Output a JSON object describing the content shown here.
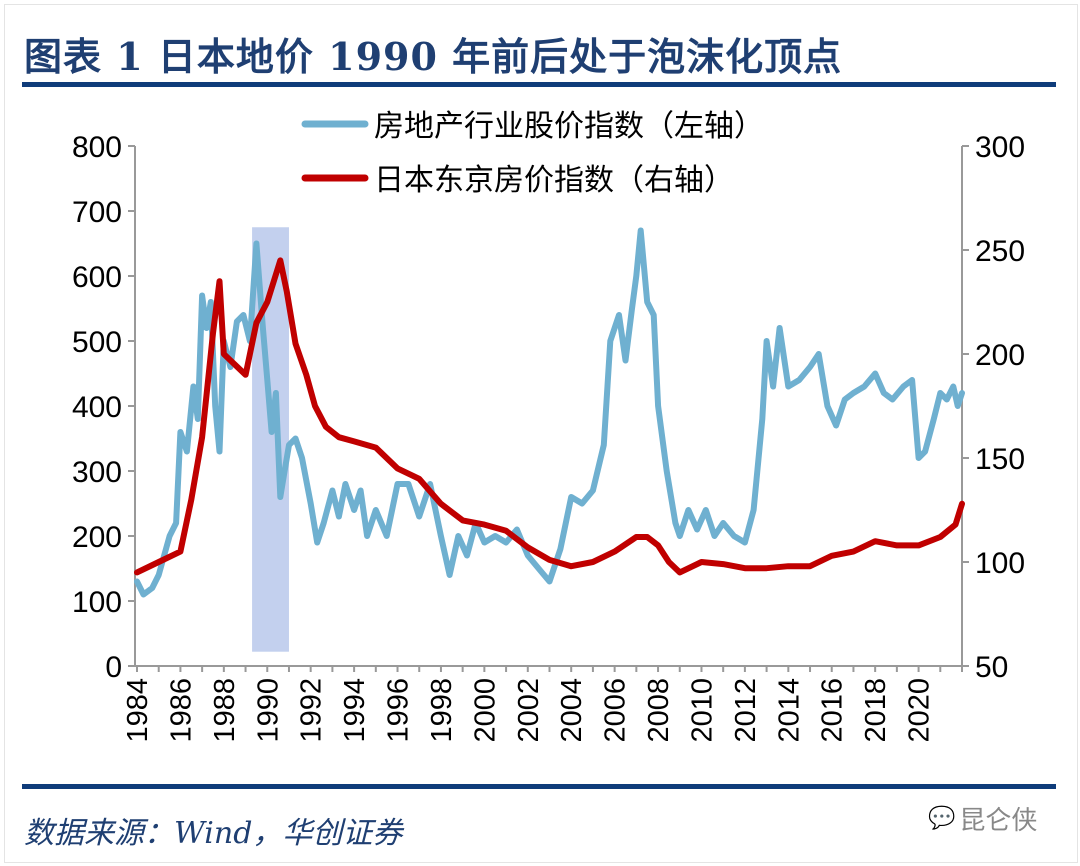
{
  "title": "图表 1 日本地价 1990 年前后处于泡沫化顶点",
  "source": "数据来源：Wind，华创证券",
  "watermark": "昆仑侠",
  "chart_data": {
    "type": "line",
    "title": "图表 1 日本地价 1990 年前后处于泡沫化顶点",
    "legend_position": "top-center",
    "x_ticks": [
      "1984",
      "1986",
      "1988",
      "1990",
      "1992",
      "1994",
      "1996",
      "1998",
      "2000",
      "2002",
      "2004",
      "2006",
      "2008",
      "2010",
      "2012",
      "2014",
      "2016",
      "2018",
      "2020"
    ],
    "xlim": [
      1984,
      2022
    ],
    "y_left": {
      "ylim": [
        0,
        800
      ],
      "ticks": [
        "0",
        "100",
        "200",
        "300",
        "400",
        "500",
        "600",
        "700",
        "800"
      ]
    },
    "y_right": {
      "ylim": [
        50,
        300
      ],
      "ticks": [
        "50",
        "100",
        "150",
        "200",
        "250",
        "300"
      ]
    },
    "highlight": {
      "x_range": [
        1989.3,
        1991.0
      ],
      "y_range_left": [
        22,
        675
      ],
      "color": "#b4c4ea"
    },
    "series": [
      {
        "name": "房地产行业股价指数（左轴）",
        "axis": "left",
        "color": "#6fb0d0",
        "x": [
          1984,
          1984.3,
          1984.7,
          1985,
          1985.5,
          1985.8,
          1986,
          1986.3,
          1986.6,
          1986.8,
          1987,
          1987.2,
          1987.4,
          1987.6,
          1987.8,
          1988,
          1988.3,
          1988.6,
          1988.9,
          1989.2,
          1989.5,
          1989.8,
          1990,
          1990.2,
          1990.4,
          1990.6,
          1990.8,
          1991,
          1991.3,
          1991.6,
          1992,
          1992.3,
          1992.6,
          1993,
          1993.3,
          1993.6,
          1994,
          1994.3,
          1994.6,
          1995,
          1995.5,
          1996,
          1996.5,
          1997,
          1997.5,
          1998,
          1998.4,
          1998.8,
          1999.2,
          1999.6,
          2000,
          2000.5,
          2001,
          2001.5,
          2002,
          2002.5,
          2003,
          2003.5,
          2004,
          2004.5,
          2005,
          2005.5,
          2005.8,
          2006.2,
          2006.5,
          2006.8,
          2007,
          2007.2,
          2007.5,
          2007.8,
          2008,
          2008.4,
          2008.8,
          2009,
          2009.4,
          2009.8,
          2010.2,
          2010.6,
          2011,
          2011.5,
          2012,
          2012.4,
          2012.8,
          2013,
          2013.3,
          2013.6,
          2014,
          2014.5,
          2015,
          2015.4,
          2015.8,
          2016.2,
          2016.6,
          2017,
          2017.5,
          2018,
          2018.4,
          2018.8,
          2019.3,
          2019.7,
          2020,
          2020.3,
          2020.7,
          2021,
          2021.3,
          2021.6,
          2021.8,
          2022
        ],
        "values": [
          130,
          110,
          120,
          140,
          200,
          220,
          360,
          330,
          430,
          380,
          570,
          520,
          560,
          400,
          330,
          500,
          460,
          530,
          540,
          500,
          650,
          520,
          440,
          360,
          420,
          260,
          300,
          340,
          350,
          320,
          250,
          190,
          220,
          270,
          230,
          280,
          240,
          270,
          200,
          240,
          200,
          280,
          280,
          230,
          280,
          200,
          140,
          200,
          170,
          220,
          190,
          200,
          190,
          210,
          170,
          150,
          130,
          180,
          260,
          250,
          270,
          340,
          500,
          540,
          470,
          550,
          600,
          670,
          560,
          540,
          400,
          300,
          220,
          200,
          240,
          210,
          240,
          200,
          220,
          200,
          190,
          240,
          380,
          500,
          430,
          520,
          430,
          440,
          460,
          480,
          400,
          370,
          410,
          420,
          430,
          450,
          420,
          410,
          430,
          440,
          320,
          330,
          380,
          420,
          410,
          430,
          400,
          420
        ]
      },
      {
        "name": "日本东京房价指数（右轴）",
        "axis": "right",
        "color": "#c00000",
        "x": [
          1984,
          1985,
          1986,
          1986.5,
          1987,
          1987.5,
          1987.8,
          1988,
          1988.5,
          1989,
          1989.5,
          1990,
          1990.6,
          1990.9,
          1991.3,
          1991.8,
          1992.2,
          1992.7,
          1993.3,
          1994,
          1995,
          1996,
          1997,
          1998,
          1999,
          2000,
          2001,
          2002,
          2003,
          2004,
          2005,
          2006,
          2007,
          2007.5,
          2008,
          2008.5,
          2009,
          2010,
          2011,
          2012,
          2013,
          2014,
          2015,
          2016,
          2017,
          2018,
          2019,
          2020,
          2021,
          2021.7,
          2022
        ],
        "values": [
          95,
          100,
          105,
          130,
          160,
          210,
          235,
          200,
          195,
          190,
          215,
          225,
          245,
          230,
          205,
          190,
          175,
          165,
          160,
          158,
          155,
          145,
          140,
          128,
          120,
          118,
          115,
          107,
          101,
          98,
          100,
          105,
          112,
          112,
          108,
          100,
          95,
          100,
          99,
          97,
          97,
          98,
          98,
          103,
          105,
          110,
          108,
          108,
          112,
          118,
          128
        ]
      }
    ]
  }
}
